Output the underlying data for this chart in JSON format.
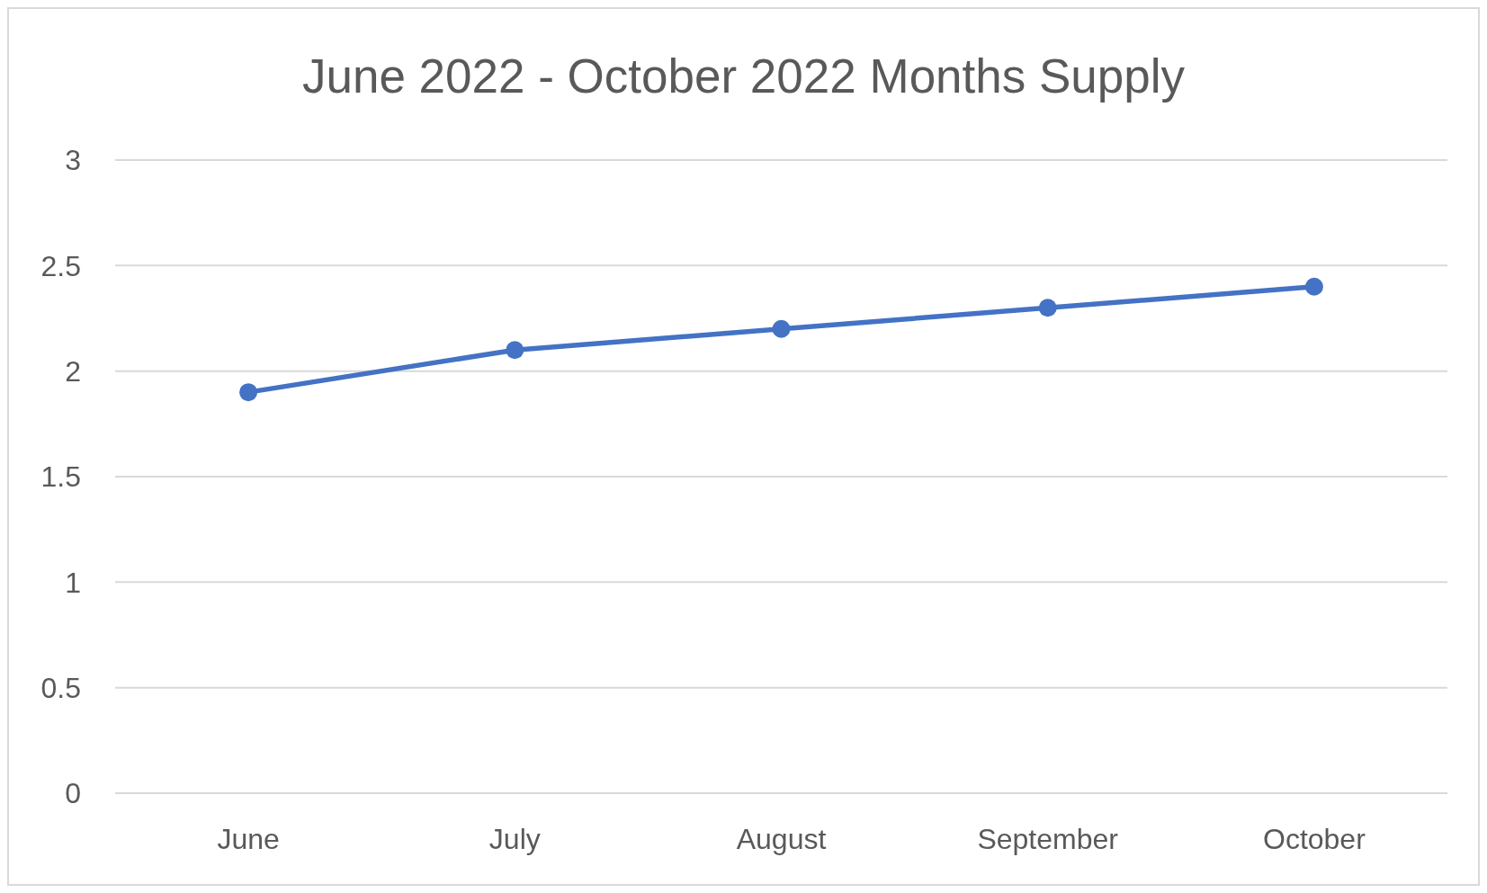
{
  "chart_data": {
    "type": "line",
    "title": "June 2022 - October 2022 Months Supply",
    "categories": [
      "June",
      "July",
      "August",
      "September",
      "October"
    ],
    "series": [
      {
        "color": "#4472c4",
        "values": [
          1.9,
          2.1,
          2.2,
          2.3,
          2.4
        ]
      }
    ],
    "ylim": [
      0,
      3
    ],
    "yticks": [
      0,
      0.5,
      1,
      1.5,
      2,
      2.5,
      3
    ],
    "grid": "y",
    "marker": "circle",
    "line_style": "solid"
  }
}
